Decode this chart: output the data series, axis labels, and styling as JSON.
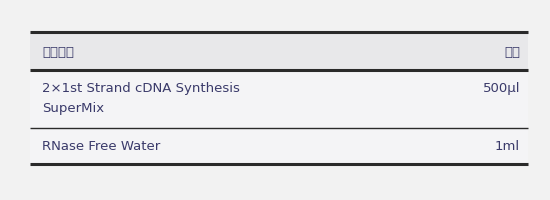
{
  "header": [
    "产品组成",
    "体积"
  ],
  "row1_left1": "2×1st Strand cDNA Synthesis",
  "row1_left2": "SuperMix",
  "row1_right": "500μl",
  "row2_left": "RNase Free Water",
  "row2_right": "1ml",
  "bg_color": "#f2f2f2",
  "header_bg": "#e6e6e8",
  "row_bg": "#f5f5f5",
  "border_color": "#2a2a2a",
  "text_color": "#3a3a6a",
  "font_size": 9.5,
  "header_font_size": 9.5,
  "fig_width": 5.5,
  "fig_height": 2.01,
  "dpi": 100
}
